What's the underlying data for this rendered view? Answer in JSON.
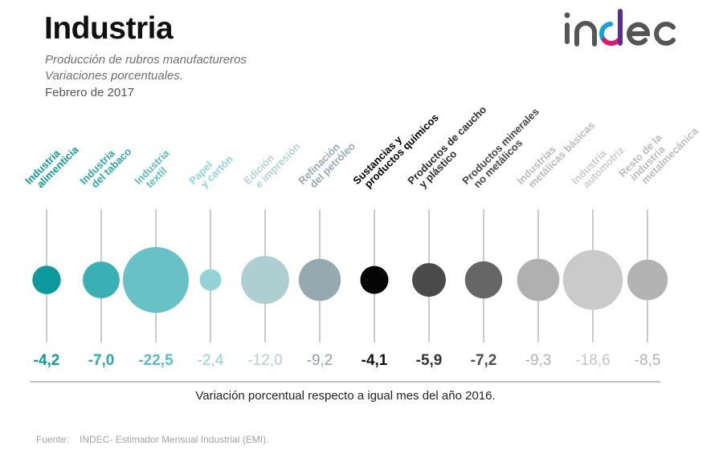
{
  "header": {
    "title": "Industria",
    "subtitle_line1": "Producción de rubros manufactureros",
    "subtitle_line2": "Variaciones porcentuales.",
    "date": "Febrero de 2017",
    "logo_text": "indec"
  },
  "chart_data": {
    "type": "bubble",
    "title": "Industria",
    "subtitle": "Producción de rubros manufactureros. Variaciones porcentuales.",
    "period": "Febrero de 2017",
    "xlabel": "Variación porcentual respecto a igual mes del año 2016.",
    "ylabel": "",
    "size_encodes": "absolute value of percentage variation",
    "categories": [
      {
        "label_lines": [
          "Industria",
          "alimenticia"
        ],
        "value": -4.2,
        "display": "-4,2",
        "color": "#0e9a9c"
      },
      {
        "label_lines": [
          "Industria",
          "del tabaco"
        ],
        "value": -7.0,
        "display": "-7,0",
        "color": "#3ab0b5"
      },
      {
        "label_lines": [
          "Industria",
          "textil"
        ],
        "value": -22.5,
        "display": "-22,5",
        "color": "#68c1c7"
      },
      {
        "label_lines": [
          "Papel",
          "y cartón"
        ],
        "value": -2.4,
        "display": "-2,4",
        "color": "#93d2d7"
      },
      {
        "label_lines": [
          "Edición",
          "e impresión"
        ],
        "value": -12.0,
        "display": "-12,0",
        "color": "#aecfd2"
      },
      {
        "label_lines": [
          "Refinación",
          "del petróleo"
        ],
        "value": -9.2,
        "display": "-9,2",
        "color": "#95aab0"
      },
      {
        "label_lines": [
          "Sustancias y",
          "productos químicos"
        ],
        "value": -4.1,
        "display": "-4,1",
        "color": "#050505"
      },
      {
        "label_lines": [
          "Productos de caucho",
          "y plástico"
        ],
        "value": -5.9,
        "display": "-5,9",
        "color": "#4a4a4a"
      },
      {
        "label_lines": [
          "Productos minerales",
          "no metálicos"
        ],
        "value": -7.2,
        "display": "-7,2",
        "color": "#666666"
      },
      {
        "label_lines": [
          "Industrias",
          "metálicas básicas"
        ],
        "value": -9.3,
        "display": "-9,3",
        "color": "#b0b0b0"
      },
      {
        "label_lines": [
          "Industria",
          "automotriz"
        ],
        "value": -18.6,
        "display": "-18,6",
        "color": "#cacaca"
      },
      {
        "label_lines": [
          "Resto de la",
          "industria",
          "metalmecánica"
        ],
        "value": -8.5,
        "display": "-8,5",
        "color": "#b3b3b3"
      }
    ],
    "value_label_colors": [
      "#11999b",
      "#2fa8ad",
      "#5dbcc2",
      "#93d2d7",
      "#b6cfd1",
      "#8fa1a6",
      "#111111",
      "#333333",
      "#4d4d4d",
      "#b0b0b0",
      "#c4c4c4",
      "#b3b3b3"
    ],
    "category_label_colors": [
      "#12999b",
      "#2fa8ad",
      "#5dbcc2",
      "#93d2d7",
      "#b4d2d4",
      "#95aab0",
      "#000000",
      "#2b2b2b",
      "#444444",
      "#bbbbbb",
      "#cccccc",
      "#bcbcbc"
    ]
  },
  "footer": {
    "caption": "Variación porcentual respecto a igual mes del año 2016.",
    "source_label": "Fuente:",
    "source_text": "INDEC- Estimador Mensual Industrial (EMI)."
  },
  "colors": {
    "logo_gray": "#555558",
    "logo_blue": "#1a9fd8",
    "logo_magenta": "#d81b6a",
    "logo_purple": "#5b2c91",
    "axis_line": "#c2c2c2",
    "stem_line": "#a8a8a8"
  }
}
